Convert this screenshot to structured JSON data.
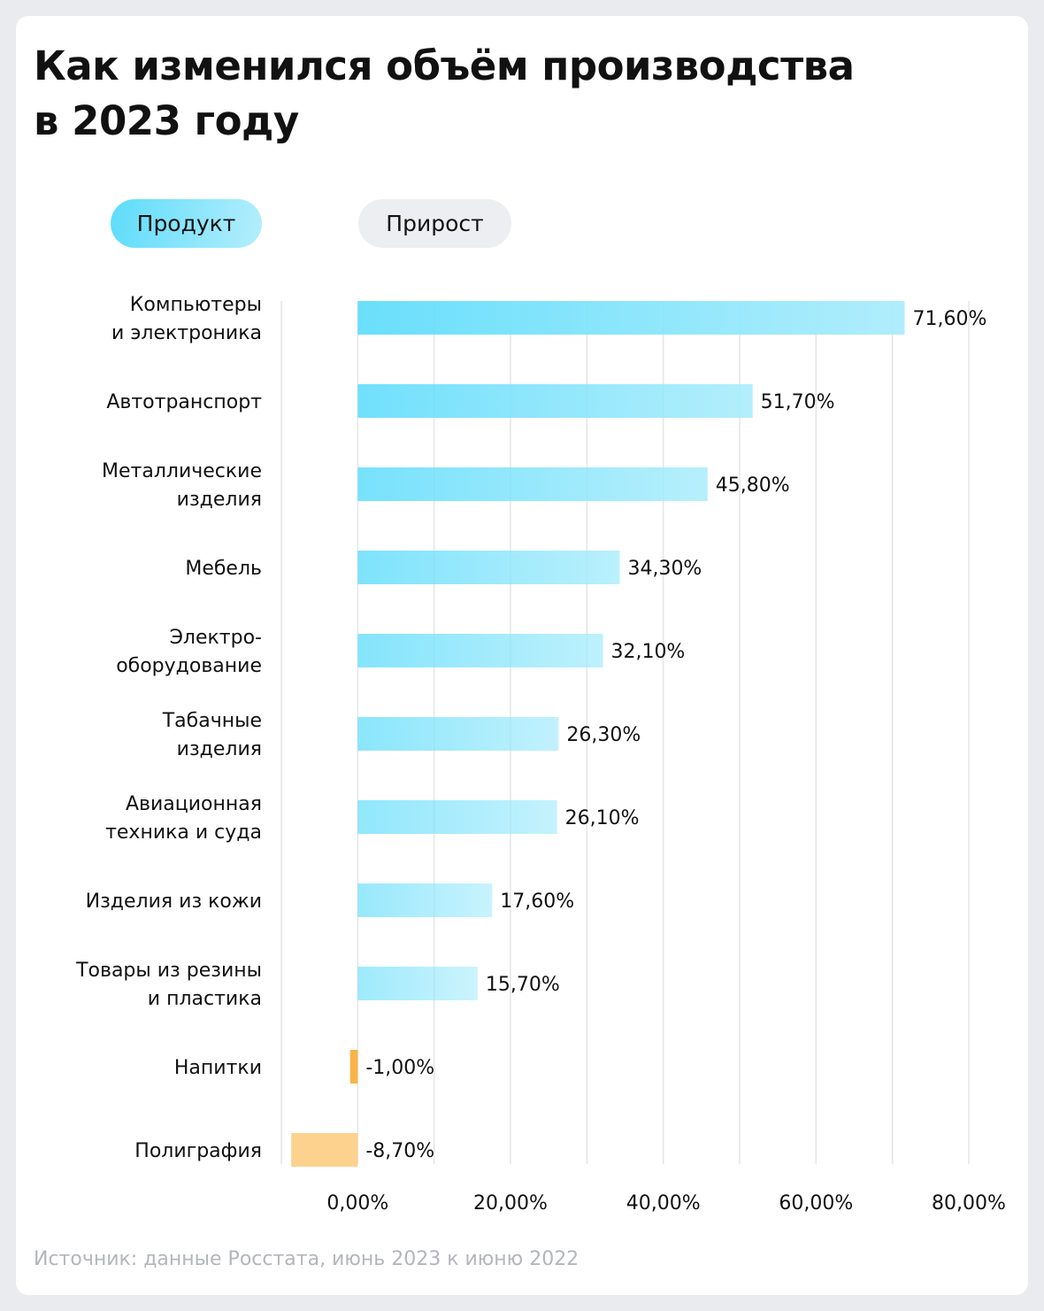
{
  "title": "Как изменился объём производства\nв 2023 году",
  "toggle": {
    "active": "Продукт",
    "inactive": "Прирост"
  },
  "source": "Источник: данные Росстата, июнь 2023 к июню 2022",
  "colors": {
    "positive_start": "#5ddcfb",
    "positive_end": "#a9ecfc",
    "negative": "#f9b347",
    "negative_light": "#fcd28e"
  },
  "chart_data": {
    "type": "bar",
    "orientation": "horizontal",
    "categories": [
      [
        "Компьютеры",
        "и электроника"
      ],
      [
        "Автотранспорт"
      ],
      [
        "Металлические",
        "изделия"
      ],
      [
        "Мебель"
      ],
      [
        "Электро-",
        "оборудование"
      ],
      [
        "Табачные",
        "изделия"
      ],
      [
        "Авиационная",
        "техника и суда"
      ],
      [
        "Изделия из кожи"
      ],
      [
        "Товары из резины",
        "и пластика"
      ],
      [
        "Напитки"
      ],
      [
        "Полиграфия"
      ]
    ],
    "values": [
      71.6,
      51.7,
      45.8,
      34.3,
      32.1,
      26.3,
      26.1,
      17.6,
      15.7,
      -1.0,
      -8.7
    ],
    "value_labels": [
      "71,60%",
      "51,70%",
      "45,80%",
      "34,30%",
      "32,10%",
      "26,30%",
      "26,10%",
      "17,60%",
      "15,70%",
      "-1,00%",
      "-8,70%"
    ],
    "xticks": [
      0,
      20,
      40,
      60,
      80
    ],
    "xtick_labels": [
      "0,00%",
      "20,00%",
      "40,00%",
      "60,00%",
      "80,00%"
    ],
    "xlim": [
      -10,
      80
    ],
    "grid": true,
    "unit": "%"
  }
}
